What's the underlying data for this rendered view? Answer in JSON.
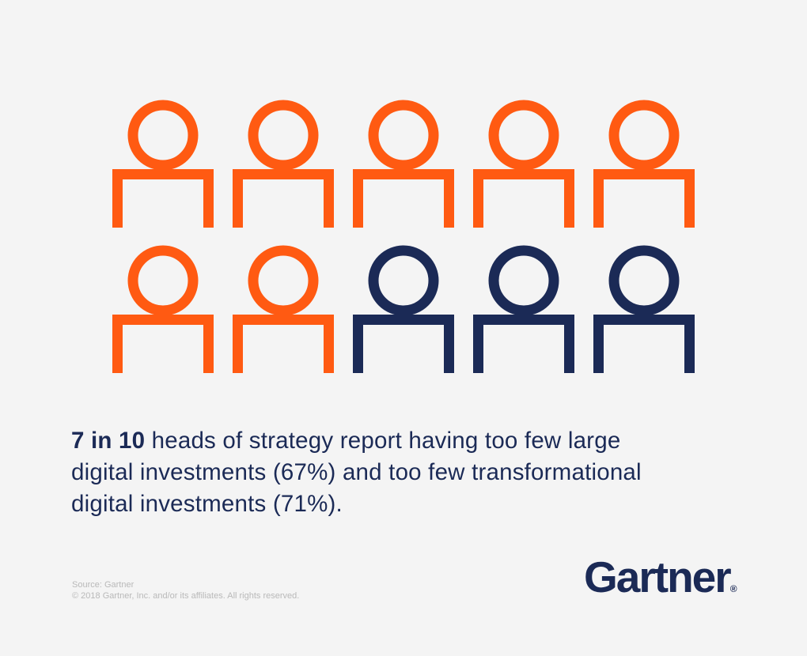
{
  "pictogram": {
    "total": 10,
    "highlighted": 7,
    "per_row": 5,
    "highlight_color": "#ff5a12",
    "rest_color": "#1b2a56",
    "icon": "person-icon"
  },
  "caption": {
    "highlight": "7 in 10",
    "line1": " heads of strategy report having too few large",
    "line2": "digital investments (67%) and too few transformational",
    "line3": "digital investments (71%)."
  },
  "footer": {
    "source": "Source: Gartner",
    "copyright": "© 2018 Gartner, Inc. and/or its affiliates. All rights reserved.",
    "logo": "Gartner",
    "logo_mark": "®"
  }
}
